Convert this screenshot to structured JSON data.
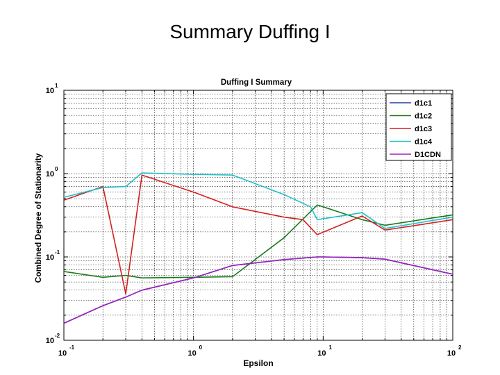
{
  "slide": {
    "title": "Summary Duffing I"
  },
  "chart_data": {
    "type": "line",
    "title": "Duffing I Summary",
    "xlabel": "Epsilon",
    "ylabel": "Combined Degree of Stationarity",
    "xscale": "log",
    "yscale": "log",
    "xlim": [
      0.1,
      100
    ],
    "ylim": [
      0.01,
      10
    ],
    "grid": true,
    "legend_position": "top-right",
    "xticks": [
      {
        "value": 0.1,
        "base": "10",
        "exp": "-1"
      },
      {
        "value": 1,
        "base": "10",
        "exp": "0"
      },
      {
        "value": 10,
        "base": "10",
        "exp": "1"
      },
      {
        "value": 100,
        "base": "10",
        "exp": "2"
      }
    ],
    "yticks": [
      {
        "value": 0.01,
        "base": "10",
        "exp": "-2"
      },
      {
        "value": 0.1,
        "base": "10",
        "exp": "-1"
      },
      {
        "value": 1,
        "base": "10",
        "exp": "0"
      },
      {
        "value": 10,
        "base": "10",
        "exp": "1"
      }
    ],
    "series": [
      {
        "name": "d1c1",
        "color": "#2040a0",
        "x": [
          0.1,
          0.2,
          0.3,
          0.4,
          1,
          2,
          5,
          9,
          10,
          20,
          30,
          100
        ],
        "y": [
          0.016,
          0.026,
          0.033,
          0.04,
          0.056,
          0.079,
          0.093,
          0.1,
          0.1,
          0.098,
          0.094,
          0.062
        ]
      },
      {
        "name": "d1c2",
        "color": "#1a7a1a",
        "x": [
          0.1,
          0.2,
          0.3,
          0.4,
          1,
          2,
          5,
          9,
          10,
          20,
          30,
          100
        ],
        "y": [
          0.067,
          0.057,
          0.06,
          0.056,
          0.057,
          0.058,
          0.17,
          0.42,
          0.4,
          0.28,
          0.24,
          0.32
        ]
      },
      {
        "name": "d1c3",
        "color": "#d42020",
        "x": [
          0.1,
          0.2,
          0.3,
          0.4,
          1,
          2,
          5,
          7,
          9,
          20,
          30,
          100
        ],
        "y": [
          0.48,
          0.7,
          0.036,
          0.96,
          0.6,
          0.4,
          0.3,
          0.28,
          0.185,
          0.31,
          0.21,
          0.28
        ]
      },
      {
        "name": "d1c4",
        "color": "#20c0c8",
        "x": [
          0.1,
          0.2,
          0.3,
          0.4,
          1,
          2,
          5,
          8,
          9,
          20,
          30,
          100
        ],
        "y": [
          0.52,
          0.68,
          0.7,
          1.02,
          0.98,
          0.96,
          0.56,
          0.4,
          0.28,
          0.34,
          0.22,
          0.3
        ]
      },
      {
        "name": "D1CDN",
        "color": "#a020c0",
        "x": [
          0.1,
          0.2,
          0.3,
          0.4,
          1,
          2,
          5,
          9,
          10,
          20,
          30,
          100
        ],
        "y": [
          0.016,
          0.026,
          0.033,
          0.04,
          0.056,
          0.079,
          0.093,
          0.1,
          0.1,
          0.098,
          0.094,
          0.062
        ]
      }
    ]
  }
}
